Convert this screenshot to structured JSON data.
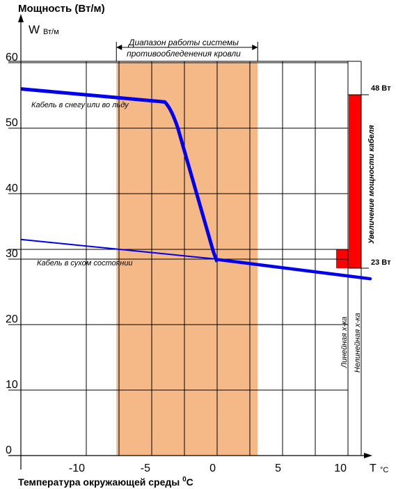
{
  "chart_data": {
    "type": "line",
    "title": "Мощность (Вт/м)",
    "ylabel": "W",
    "ylabel_unit": "Вт/м",
    "xlabel": "Т",
    "xlabel_unit": "°C",
    "bottom_title_main": "Температура окружающей среды 0",
    "bottom_title_sup": "0",
    "bottom_title_end": "C",
    "xlim": [
      -15,
      11.7
    ],
    "ylim": [
      0,
      60
    ],
    "x_ticks": [
      -10,
      -5,
      0,
      5,
      10
    ],
    "x_tick_labels": [
      "-10",
      "-5",
      "0",
      "5",
      "10"
    ],
    "y_ticks": [
      0,
      10,
      20,
      30,
      40,
      50,
      60
    ],
    "y_tick_labels": [
      "0",
      "10",
      "20",
      "30",
      "40",
      "50",
      "60"
    ],
    "grid": true,
    "band": {
      "x_start": -7.7,
      "x_end": 3.1,
      "label_line1": "Диапазон работы системы",
      "label_line2": "противообледенения кровли",
      "color": "#F5B987"
    },
    "series": [
      {
        "name": "Кабель в снегу или во льду",
        "x": [
          -15,
          -4,
          -3.5,
          -3,
          0
        ],
        "y": [
          56,
          54,
          53,
          50,
          30
        ],
        "color": "#0000EE"
      },
      {
        "name": "Кабель в сухом состоянии",
        "x": [
          -15,
          0,
          11.7
        ],
        "y": [
          33,
          30,
          27
        ],
        "color": "#0000EE"
      }
    ],
    "annotations": {
      "max_power": "48 Вт",
      "min_power": "23 Вт",
      "increase_label": "Увеличение мощности кабеля",
      "increase_color": "#FF0000",
      "linear_label": "Линейная х-ка",
      "nonlinear_label": "Нелинейная х-ка"
    }
  }
}
